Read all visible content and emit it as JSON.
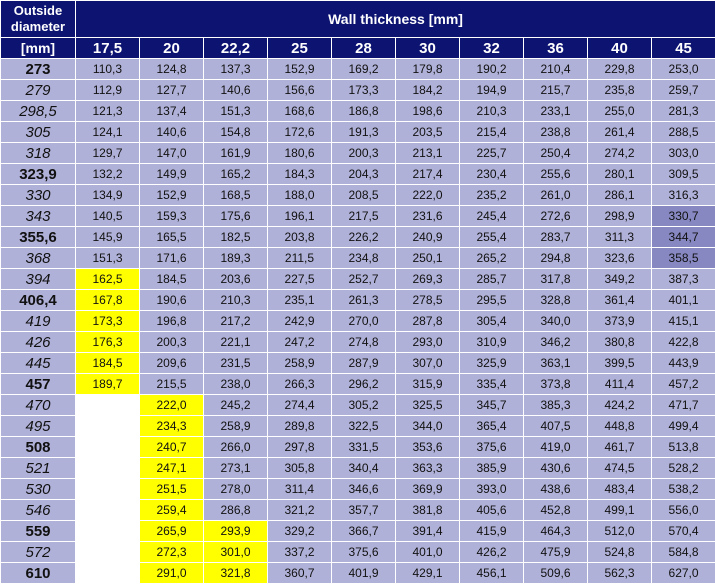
{
  "header": {
    "corner_line1": "Outside",
    "corner_line2": "diameter",
    "wall_title": "Wall thickness [mm]",
    "unit": "[mm]",
    "thicknesses": [
      "17,5",
      "20",
      "22,2",
      "25",
      "28",
      "30",
      "32",
      "36",
      "40",
      "45"
    ]
  },
  "rows": [
    {
      "d": "273",
      "bold": true,
      "cells": [
        "110,3",
        "124,8",
        "137,3",
        "152,9",
        "169,2",
        "179,8",
        "190,2",
        "210,4",
        "229,8",
        "253,0"
      ],
      "marks": [
        "",
        "",
        "",
        "",
        "",
        "",
        "",
        "",
        "",
        ""
      ]
    },
    {
      "d": "279",
      "bold": false,
      "cells": [
        "112,9",
        "127,7",
        "140,6",
        "156,6",
        "173,3",
        "184,2",
        "194,9",
        "215,7",
        "235,8",
        "259,7"
      ],
      "marks": [
        "",
        "",
        "",
        "",
        "",
        "",
        "",
        "",
        "",
        ""
      ]
    },
    {
      "d": "298,5",
      "bold": false,
      "cells": [
        "121,3",
        "137,4",
        "151,3",
        "168,6",
        "186,8",
        "198,6",
        "210,3",
        "233,1",
        "255,0",
        "281,3"
      ],
      "marks": [
        "",
        "",
        "",
        "",
        "",
        "",
        "",
        "",
        "",
        ""
      ]
    },
    {
      "d": "305",
      "bold": false,
      "cells": [
        "124,1",
        "140,6",
        "154,8",
        "172,6",
        "191,3",
        "203,5",
        "215,4",
        "238,8",
        "261,4",
        "288,5"
      ],
      "marks": [
        "",
        "",
        "",
        "",
        "",
        "",
        "",
        "",
        "",
        ""
      ]
    },
    {
      "d": "318",
      "bold": false,
      "cells": [
        "129,7",
        "147,0",
        "161,9",
        "180,6",
        "200,3",
        "213,1",
        "225,7",
        "250,4",
        "274,2",
        "303,0"
      ],
      "marks": [
        "",
        "",
        "",
        "",
        "",
        "",
        "",
        "",
        "",
        ""
      ]
    },
    {
      "d": "323,9",
      "bold": true,
      "cells": [
        "132,2",
        "149,9",
        "165,2",
        "184,3",
        "204,3",
        "217,4",
        "230,4",
        "255,6",
        "280,1",
        "309,5"
      ],
      "marks": [
        "",
        "",
        "",
        "",
        "",
        "",
        "",
        "",
        "",
        ""
      ]
    },
    {
      "d": "330",
      "bold": false,
      "cells": [
        "134,9",
        "152,9",
        "168,5",
        "188,0",
        "208,5",
        "222,0",
        "235,2",
        "261,0",
        "286,1",
        "316,3"
      ],
      "marks": [
        "",
        "",
        "",
        "",
        "",
        "",
        "",
        "",
        "",
        ""
      ]
    },
    {
      "d": "343",
      "bold": false,
      "cells": [
        "140,5",
        "159,3",
        "175,6",
        "196,1",
        "217,5",
        "231,6",
        "245,4",
        "272,6",
        "298,9",
        "330,7"
      ],
      "marks": [
        "",
        "",
        "",
        "",
        "",
        "",
        "",
        "",
        "",
        "dark"
      ]
    },
    {
      "d": "355,6",
      "bold": true,
      "cells": [
        "145,9",
        "165,5",
        "182,5",
        "203,8",
        "226,2",
        "240,9",
        "255,4",
        "283,7",
        "311,3",
        "344,7"
      ],
      "marks": [
        "",
        "",
        "",
        "",
        "",
        "",
        "",
        "",
        "",
        "dark"
      ]
    },
    {
      "d": "368",
      "bold": false,
      "cells": [
        "151,3",
        "171,6",
        "189,3",
        "211,5",
        "234,8",
        "250,1",
        "265,2",
        "294,8",
        "323,6",
        "358,5"
      ],
      "marks": [
        "",
        "",
        "",
        "",
        "",
        "",
        "",
        "",
        "",
        "dark"
      ]
    },
    {
      "d": "394",
      "bold": false,
      "cells": [
        "162,5",
        "184,5",
        "203,6",
        "227,5",
        "252,7",
        "269,3",
        "285,7",
        "317,8",
        "349,2",
        "387,3"
      ],
      "marks": [
        "yellow",
        "",
        "",
        "",
        "",
        "",
        "",
        "",
        "",
        ""
      ]
    },
    {
      "d": "406,4",
      "bold": true,
      "cells": [
        "167,8",
        "190,6",
        "210,3",
        "235,1",
        "261,3",
        "278,5",
        "295,5",
        "328,8",
        "361,4",
        "401,1"
      ],
      "marks": [
        "yellow",
        "",
        "",
        "",
        "",
        "",
        "",
        "",
        "",
        ""
      ]
    },
    {
      "d": "419",
      "bold": false,
      "cells": [
        "173,3",
        "196,8",
        "217,2",
        "242,9",
        "270,0",
        "287,8",
        "305,4",
        "340,0",
        "373,9",
        "415,1"
      ],
      "marks": [
        "yellow",
        "",
        "",
        "",
        "",
        "",
        "",
        "",
        "",
        ""
      ]
    },
    {
      "d": "426",
      "bold": false,
      "cells": [
        "176,3",
        "200,3",
        "221,1",
        "247,2",
        "274,8",
        "293,0",
        "310,9",
        "346,2",
        "380,8",
        "422,8"
      ],
      "marks": [
        "yellow",
        "",
        "",
        "",
        "",
        "",
        "",
        "",
        "",
        ""
      ]
    },
    {
      "d": "445",
      "bold": false,
      "cells": [
        "184,5",
        "209,6",
        "231,5",
        "258,9",
        "287,9",
        "307,0",
        "325,9",
        "363,1",
        "399,5",
        "443,9"
      ],
      "marks": [
        "yellow",
        "",
        "",
        "",
        "",
        "",
        "",
        "",
        "",
        ""
      ]
    },
    {
      "d": "457",
      "bold": true,
      "cells": [
        "189,7",
        "215,5",
        "238,0",
        "266,3",
        "296,2",
        "315,9",
        "335,4",
        "373,8",
        "411,4",
        "457,2"
      ],
      "marks": [
        "yellow",
        "",
        "",
        "",
        "",
        "",
        "",
        "",
        "",
        ""
      ]
    },
    {
      "d": "470",
      "bold": false,
      "cells": [
        "",
        "222,0",
        "245,2",
        "274,4",
        "305,2",
        "325,5",
        "345,7",
        "385,3",
        "424,2",
        "471,7"
      ],
      "marks": [
        "blank",
        "yellow",
        "",
        "",
        "",
        "",
        "",
        "",
        "",
        ""
      ]
    },
    {
      "d": "495",
      "bold": false,
      "cells": [
        "",
        "234,3",
        "258,9",
        "289,8",
        "322,5",
        "344,0",
        "365,4",
        "407,5",
        "448,8",
        "499,4"
      ],
      "marks": [
        "blank",
        "yellow",
        "",
        "",
        "",
        "",
        "",
        "",
        "",
        ""
      ]
    },
    {
      "d": "508",
      "bold": true,
      "cells": [
        "",
        "240,7",
        "266,0",
        "297,8",
        "331,5",
        "353,6",
        "375,6",
        "419,0",
        "461,7",
        "513,8"
      ],
      "marks": [
        "blank",
        "yellow",
        "",
        "",
        "",
        "",
        "",
        "",
        "",
        ""
      ]
    },
    {
      "d": "521",
      "bold": false,
      "cells": [
        "",
        "247,1",
        "273,1",
        "305,8",
        "340,4",
        "363,3",
        "385,9",
        "430,6",
        "474,5",
        "528,2"
      ],
      "marks": [
        "blank",
        "yellow",
        "",
        "",
        "",
        "",
        "",
        "",
        "",
        ""
      ]
    },
    {
      "d": "530",
      "bold": false,
      "cells": [
        "",
        "251,5",
        "278,0",
        "311,4",
        "346,6",
        "369,9",
        "393,0",
        "438,6",
        "483,4",
        "538,2"
      ],
      "marks": [
        "blank",
        "yellow",
        "",
        "",
        "",
        "",
        "",
        "",
        "",
        ""
      ]
    },
    {
      "d": "546",
      "bold": false,
      "cells": [
        "",
        "259,4",
        "286,8",
        "321,2",
        "357,7",
        "381,8",
        "405,6",
        "452,8",
        "499,1",
        "556,0"
      ],
      "marks": [
        "blank",
        "yellow",
        "",
        "",
        "",
        "",
        "",
        "",
        "",
        ""
      ]
    },
    {
      "d": "559",
      "bold": true,
      "cells": [
        "",
        "265,9",
        "293,9",
        "329,2",
        "366,7",
        "391,4",
        "415,9",
        "464,3",
        "512,0",
        "570,4"
      ],
      "marks": [
        "blank",
        "yellow",
        "yellow",
        "",
        "",
        "",
        "",
        "",
        "",
        ""
      ]
    },
    {
      "d": "572",
      "bold": false,
      "cells": [
        "",
        "272,3",
        "301,0",
        "337,2",
        "375,6",
        "401,0",
        "426,2",
        "475,9",
        "524,8",
        "584,8"
      ],
      "marks": [
        "blank",
        "yellow",
        "yellow",
        "",
        "",
        "",
        "",
        "",
        "",
        ""
      ]
    },
    {
      "d": "610",
      "bold": true,
      "cells": [
        "",
        "291,0",
        "321,8",
        "360,7",
        "401,9",
        "429,1",
        "456,1",
        "509,6",
        "562,3",
        "627,0"
      ],
      "marks": [
        "blank",
        "yellow",
        "yellow",
        "",
        "",
        "",
        "",
        "",
        "",
        ""
      ]
    }
  ]
}
